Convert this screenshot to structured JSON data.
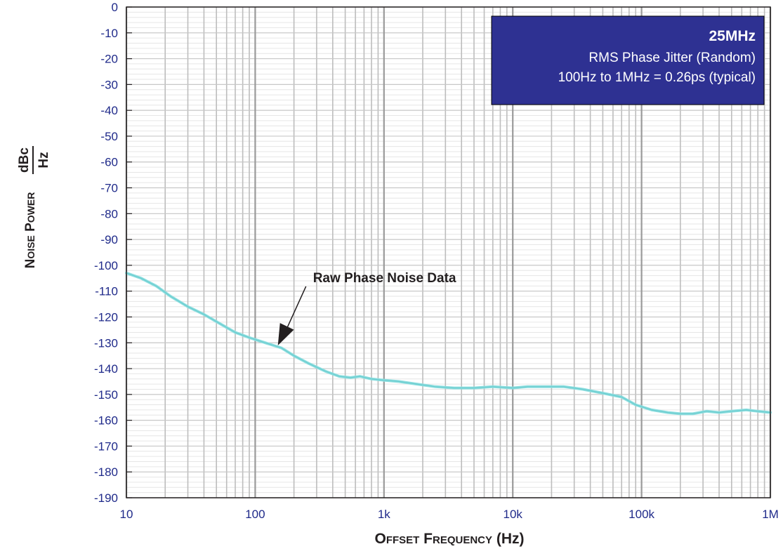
{
  "chart_data": {
    "type": "line",
    "x_scale": "log",
    "xlim": [
      10,
      1000000
    ],
    "ylim": [
      -190,
      0
    ],
    "grid": true,
    "xlabel": {
      "first": "O",
      "first_rest": "FFSET",
      "second": "F",
      "second_rest": "REQUENCY",
      "unit": "(Hz)"
    },
    "ylabel": {
      "first": "N",
      "first_rest": "OISE",
      "second": "P",
      "second_rest": "OWER",
      "unit_top": "dBc",
      "unit_bottom": "Hz"
    },
    "x_ticks": [
      {
        "value": 10,
        "label": "10"
      },
      {
        "value": 100,
        "label": "100"
      },
      {
        "value": 1000,
        "label": "1k"
      },
      {
        "value": 10000,
        "label": "10k"
      },
      {
        "value": 100000,
        "label": "100k"
      },
      {
        "value": 1000000,
        "label": "1M"
      }
    ],
    "y_ticks": [
      "0",
      "-10",
      "-20",
      "-30",
      "-40",
      "-50",
      "-60",
      "-70",
      "-80",
      "-90",
      "-100",
      "-110",
      "-120",
      "-130",
      "-140",
      "-150",
      "-160",
      "-170",
      "-180",
      "-190"
    ],
    "legend": {
      "placement": "top-right",
      "title": "25MHz",
      "line1": "RMS Phase Jitter (Random)",
      "line2": "100Hz to 1MHz = 0.26ps (typical)",
      "bg_color": "#2e3192"
    },
    "annotation": {
      "text": "Raw Phase Noise Data",
      "target_x": 150,
      "target_y": -131
    },
    "series": [
      {
        "color": "#8fdfe0",
        "x": [
          10,
          13,
          17,
          22,
          30,
          40,
          55,
          70,
          90,
          120,
          160,
          200,
          260,
          350,
          450,
          550,
          650,
          800,
          1000,
          1300,
          1800,
          2500,
          3500,
          5000,
          7000,
          10000,
          13000,
          18000,
          25000,
          35000,
          50000,
          70000,
          90000,
          120000,
          160000,
          200000,
          250000,
          320000,
          400000,
          500000,
          650000,
          800000,
          1000000
        ],
        "y": [
          -103,
          -105,
          -108,
          -112,
          -116,
          -119,
          -123,
          -126,
          -128,
          -130,
          -132,
          -135,
          -138,
          -141,
          -143,
          -143.5,
          -143,
          -144,
          -144.5,
          -145,
          -146,
          -147,
          -147.5,
          -147.5,
          -147,
          -147.5,
          -147,
          -147,
          -147,
          -148,
          -149.5,
          -151,
          -154,
          -156,
          -157,
          -157.5,
          -157.5,
          -156.5,
          -157,
          -156.5,
          -156,
          -156.5,
          -157
        ]
      }
    ]
  }
}
